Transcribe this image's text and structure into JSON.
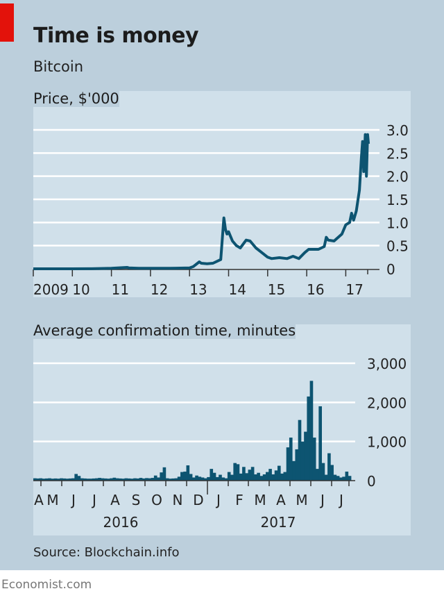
{
  "header": {
    "title": "Time is money",
    "subtitle": "Bitcoin"
  },
  "source": "Source: Blockchain.info",
  "footer": "Economist.com",
  "colors": {
    "line": "#0d5471",
    "accent_red": "#e3120b",
    "background": "#bccfdc",
    "panel": "#d0e0ea",
    "gridline": "#ffffff"
  },
  "chart_data": [
    {
      "type": "line",
      "title": "Price, $'000",
      "xlabel": "",
      "ylabel": "",
      "ylim": [
        0,
        3.0
      ],
      "xlim": [
        2009.0,
        2017.5
      ],
      "yticks": [
        "0",
        "0.5",
        "1.0",
        "1.5",
        "2.0",
        "2.5",
        "3.0"
      ],
      "ytick_values": [
        0,
        0.5,
        1.0,
        1.5,
        2.0,
        2.5,
        3.0
      ],
      "xticks": [
        "2009",
        "10",
        "11",
        "12",
        "13",
        "14",
        "15",
        "16",
        "17"
      ],
      "xtick_values": [
        2009,
        2010,
        2011,
        2012,
        2013,
        2014,
        2015,
        2016,
        2017
      ],
      "grid": true,
      "series": [
        {
          "name": "Bitcoin price",
          "x": [
            2009.0,
            2010.0,
            2010.5,
            2011.0,
            2011.4,
            2011.45,
            2011.7,
            2012.0,
            2012.5,
            2013.0,
            2013.1,
            2013.25,
            2013.3,
            2013.45,
            2013.6,
            2013.8,
            2013.88,
            2013.92,
            2013.96,
            2014.0,
            2014.1,
            2014.2,
            2014.3,
            2014.45,
            2014.55,
            2014.7,
            2014.85,
            2015.0,
            2015.1,
            2015.3,
            2015.5,
            2015.65,
            2015.8,
            2015.95,
            2016.05,
            2016.3,
            2016.45,
            2016.5,
            2016.55,
            2016.7,
            2016.9,
            2017.0,
            2017.1,
            2017.15,
            2017.2,
            2017.27,
            2017.35,
            2017.4,
            2017.43,
            2017.46,
            2017.5,
            2017.53,
            2017.56,
            2017.58
          ],
          "y": [
            0,
            0,
            0.001,
            0.01,
            0.03,
            0.02,
            0.01,
            0.01,
            0.01,
            0.02,
            0.05,
            0.15,
            0.12,
            0.11,
            0.12,
            0.2,
            1.1,
            0.85,
            0.75,
            0.8,
            0.6,
            0.5,
            0.45,
            0.62,
            0.6,
            0.45,
            0.35,
            0.25,
            0.22,
            0.24,
            0.22,
            0.27,
            0.22,
            0.35,
            0.42,
            0.42,
            0.48,
            0.68,
            0.62,
            0.6,
            0.75,
            0.95,
            1.0,
            1.2,
            1.05,
            1.25,
            1.7,
            2.4,
            2.75,
            2.1,
            2.9,
            2.0,
            2.9,
            2.7
          ]
        }
      ]
    },
    {
      "type": "bar",
      "title": "Average confirmation time, minutes",
      "xlabel": "",
      "ylabel": "",
      "ylim": [
        0,
        3000
      ],
      "yticks": [
        "0",
        "1,000",
        "2,000",
        "3,000"
      ],
      "ytick_values": [
        0,
        1000,
        2000,
        3000
      ],
      "xticks": [
        "A",
        "M",
        "J",
        "J",
        "A",
        "S",
        "O",
        "N",
        "D",
        "J",
        "F",
        "M",
        "A",
        "M",
        "J",
        "J"
      ],
      "year_labels": [
        "2016",
        "2017"
      ],
      "grid": true,
      "x_range": "April 2016 - mid-July 2017 (weekly-ish bins)",
      "series": [
        {
          "name": "Average confirmation time",
          "values": [
            60,
            55,
            60,
            50,
            55,
            60,
            50,
            55,
            50,
            60,
            55,
            50,
            55,
            60,
            170,
            120,
            60,
            55,
            50,
            50,
            55,
            60,
            70,
            60,
            55,
            50,
            60,
            75,
            60,
            55,
            50,
            60,
            55,
            50,
            60,
            55,
            70,
            55,
            65,
            60,
            70,
            130,
            80,
            210,
            340,
            60,
            50,
            55,
            60,
            100,
            220,
            230,
            390,
            170,
            80,
            130,
            100,
            80,
            60,
            90,
            300,
            200,
            90,
            150,
            80,
            60,
            220,
            150,
            450,
            420,
            180,
            350,
            190,
            280,
            350,
            160,
            200,
            120,
            160,
            220,
            300,
            160,
            260,
            380,
            180,
            220,
            850,
            1100,
            500,
            800,
            1550,
            1000,
            1250,
            2150,
            2550,
            1100,
            300,
            1900,
            450,
            150,
            700,
            400,
            150,
            120,
            80,
            100,
            230,
            120
          ]
        }
      ]
    }
  ]
}
